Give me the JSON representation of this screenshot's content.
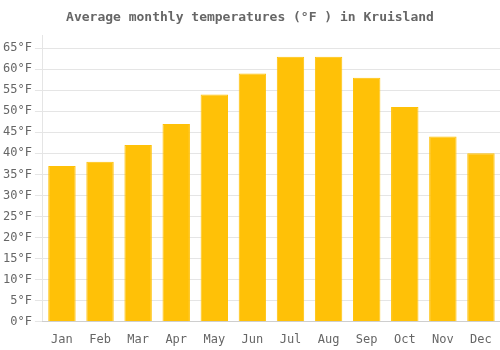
{
  "chart_data": {
    "type": "bar",
    "title": "Average monthly temperatures (°F ) in Kruisland",
    "categories": [
      "Jan",
      "Feb",
      "Mar",
      "Apr",
      "May",
      "Jun",
      "Jul",
      "Aug",
      "Sep",
      "Oct",
      "Nov",
      "Dec"
    ],
    "values": [
      37,
      38,
      42,
      47,
      54,
      59,
      63,
      63,
      58,
      51,
      44,
      40
    ],
    "color": "#FFC107",
    "ylim": [
      0,
      68
    ],
    "yticks": [
      {
        "value": 0,
        "label": "0°F"
      },
      {
        "value": 5,
        "label": "5°F"
      },
      {
        "value": 10,
        "label": "10°F"
      },
      {
        "value": 15,
        "label": "15°F"
      },
      {
        "value": 20,
        "label": "20°F"
      },
      {
        "value": 25,
        "label": "25°F"
      },
      {
        "value": 30,
        "label": "30°F"
      },
      {
        "value": 35,
        "label": "35°F"
      },
      {
        "value": 40,
        "label": "40°F"
      },
      {
        "value": 45,
        "label": "45°F"
      },
      {
        "value": 50,
        "label": "50°F"
      },
      {
        "value": 55,
        "label": "55°F"
      },
      {
        "value": 60,
        "label": "60°F"
      },
      {
        "value": 65,
        "label": "65°F"
      }
    ],
    "grid": true
  }
}
